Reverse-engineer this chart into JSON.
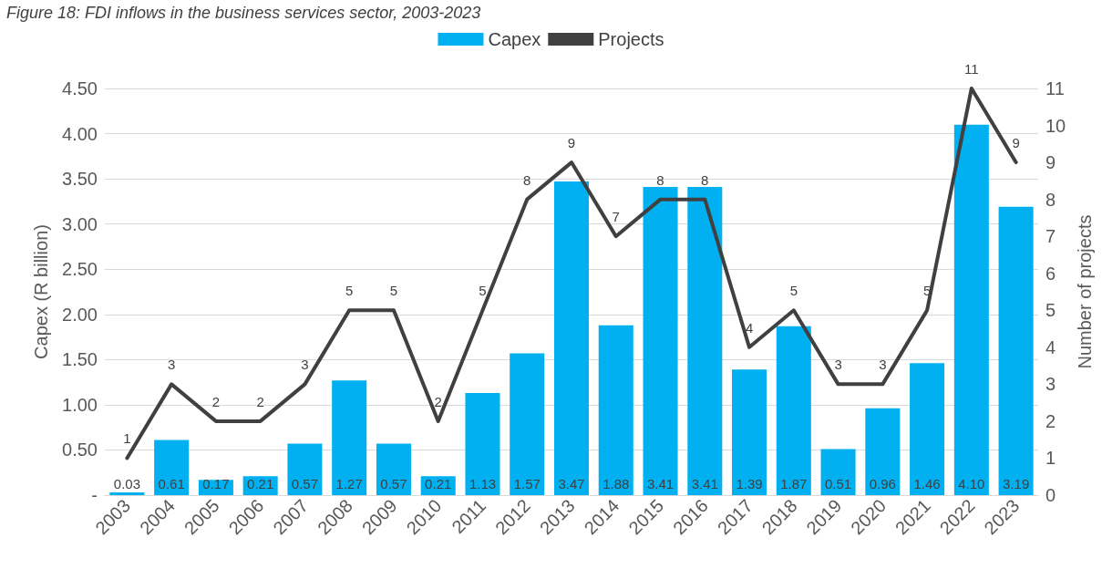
{
  "chart_data": {
    "type": "bar",
    "title": "Figure 18: FDI inflows in the business services sector, 2003-2023",
    "ylabel": "Capex (R billion)",
    "y2label": "Number of projects",
    "categories": [
      "2003",
      "2004",
      "2005",
      "2006",
      "2007",
      "2008",
      "2009",
      "2010",
      "2011",
      "2012",
      "2013",
      "2014",
      "2015",
      "2016",
      "2017",
      "2018",
      "2019",
      "2020",
      "2021",
      "2022",
      "2023"
    ],
    "series": [
      {
        "name": "Capex",
        "color": "#00b0f0",
        "values": [
          0.03,
          0.61,
          0.17,
          0.21,
          0.57,
          1.27,
          0.57,
          0.21,
          1.13,
          1.57,
          3.47,
          1.88,
          3.41,
          3.41,
          1.39,
          1.87,
          0.51,
          0.96,
          1.46,
          4.1,
          3.19
        ],
        "value_labels": [
          "0.03",
          "0.61",
          "0.17",
          "0.21",
          "0.57",
          "1.27",
          "0.57",
          "0.21",
          "1.13",
          "1.57",
          "3.47",
          "1.88",
          "3.41",
          "3.41",
          "1.39",
          "1.87",
          "0.51",
          "0.96",
          "1.46",
          "4.10",
          "3.19"
        ]
      },
      {
        "name": "Projects",
        "type": "line",
        "axis": "y2",
        "color": "#404040",
        "values": [
          1,
          3,
          2,
          2,
          3,
          5,
          5,
          2,
          5,
          8,
          9,
          7,
          8,
          8,
          4,
          5,
          3,
          3,
          5,
          11,
          9
        ],
        "value_labels": [
          "1",
          "3",
          "2",
          "2",
          "3",
          "5",
          "5",
          "2",
          "5",
          "8",
          "9",
          "7",
          "8",
          "8",
          "4",
          "5",
          "3",
          "3",
          "5",
          "11",
          "9"
        ]
      }
    ],
    "ylim": [
      0,
      4.5
    ],
    "yticks": [
      {
        "value": 0,
        "label": "-"
      },
      {
        "value": 0.5,
        "label": "0.50"
      },
      {
        "value": 1,
        "label": "1.00"
      },
      {
        "value": 1.5,
        "label": "1.50"
      },
      {
        "value": 2,
        "label": "2.00"
      },
      {
        "value": 2.5,
        "label": "2.50"
      },
      {
        "value": 3,
        "label": "3.00"
      },
      {
        "value": 3.5,
        "label": "3.50"
      },
      {
        "value": 4,
        "label": "4.00"
      },
      {
        "value": 4.5,
        "label": "4.50"
      }
    ],
    "y2lim": [
      0,
      11
    ],
    "y2ticks": [
      0,
      1,
      2,
      3,
      4,
      5,
      6,
      7,
      8,
      9,
      10,
      11
    ],
    "grid": "y",
    "legend": "top",
    "marker": "none",
    "line_style": "solid"
  }
}
